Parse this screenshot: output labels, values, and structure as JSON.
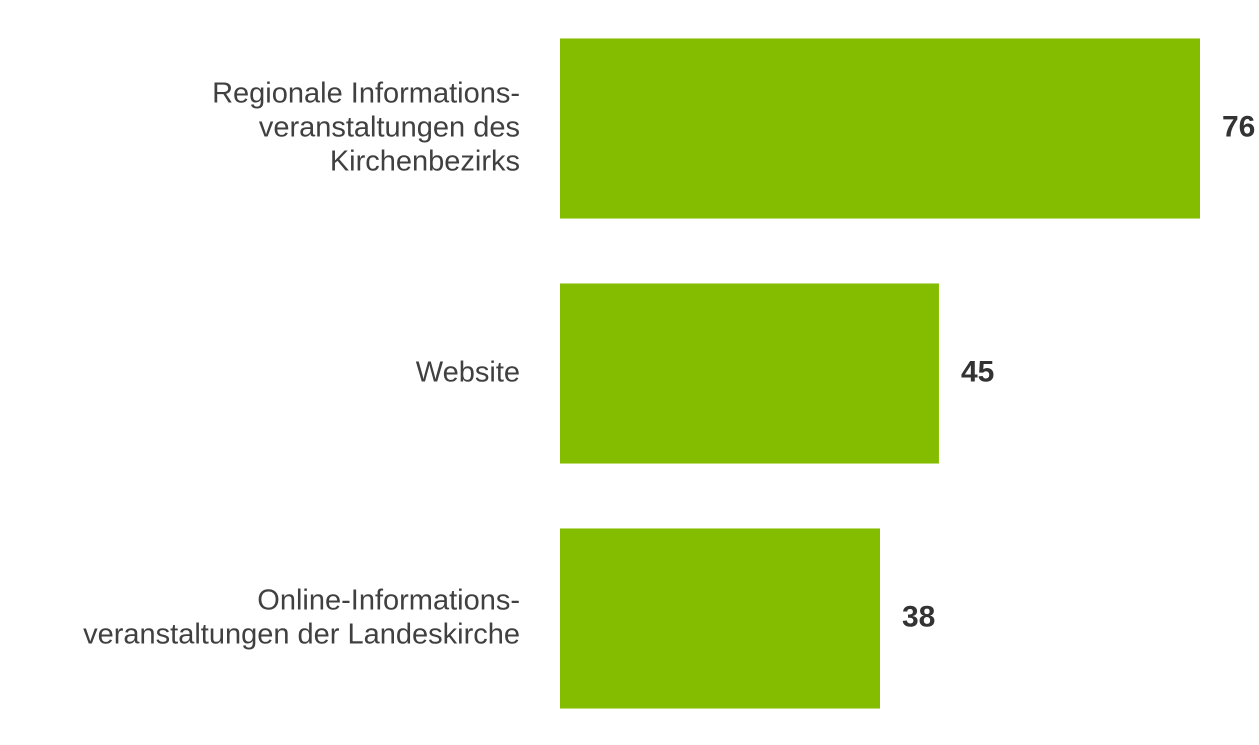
{
  "chart_data": {
    "type": "bar",
    "orientation": "horizontal",
    "categories": [
      "Regionale Informations-\nveranstaltungen des\nKirchenbezirks",
      "Website",
      "Online-Informations-\nveranstaltungen der Landeskirche"
    ],
    "values": [
      76,
      45,
      38
    ],
    "color": "#84bc00"
  }
}
